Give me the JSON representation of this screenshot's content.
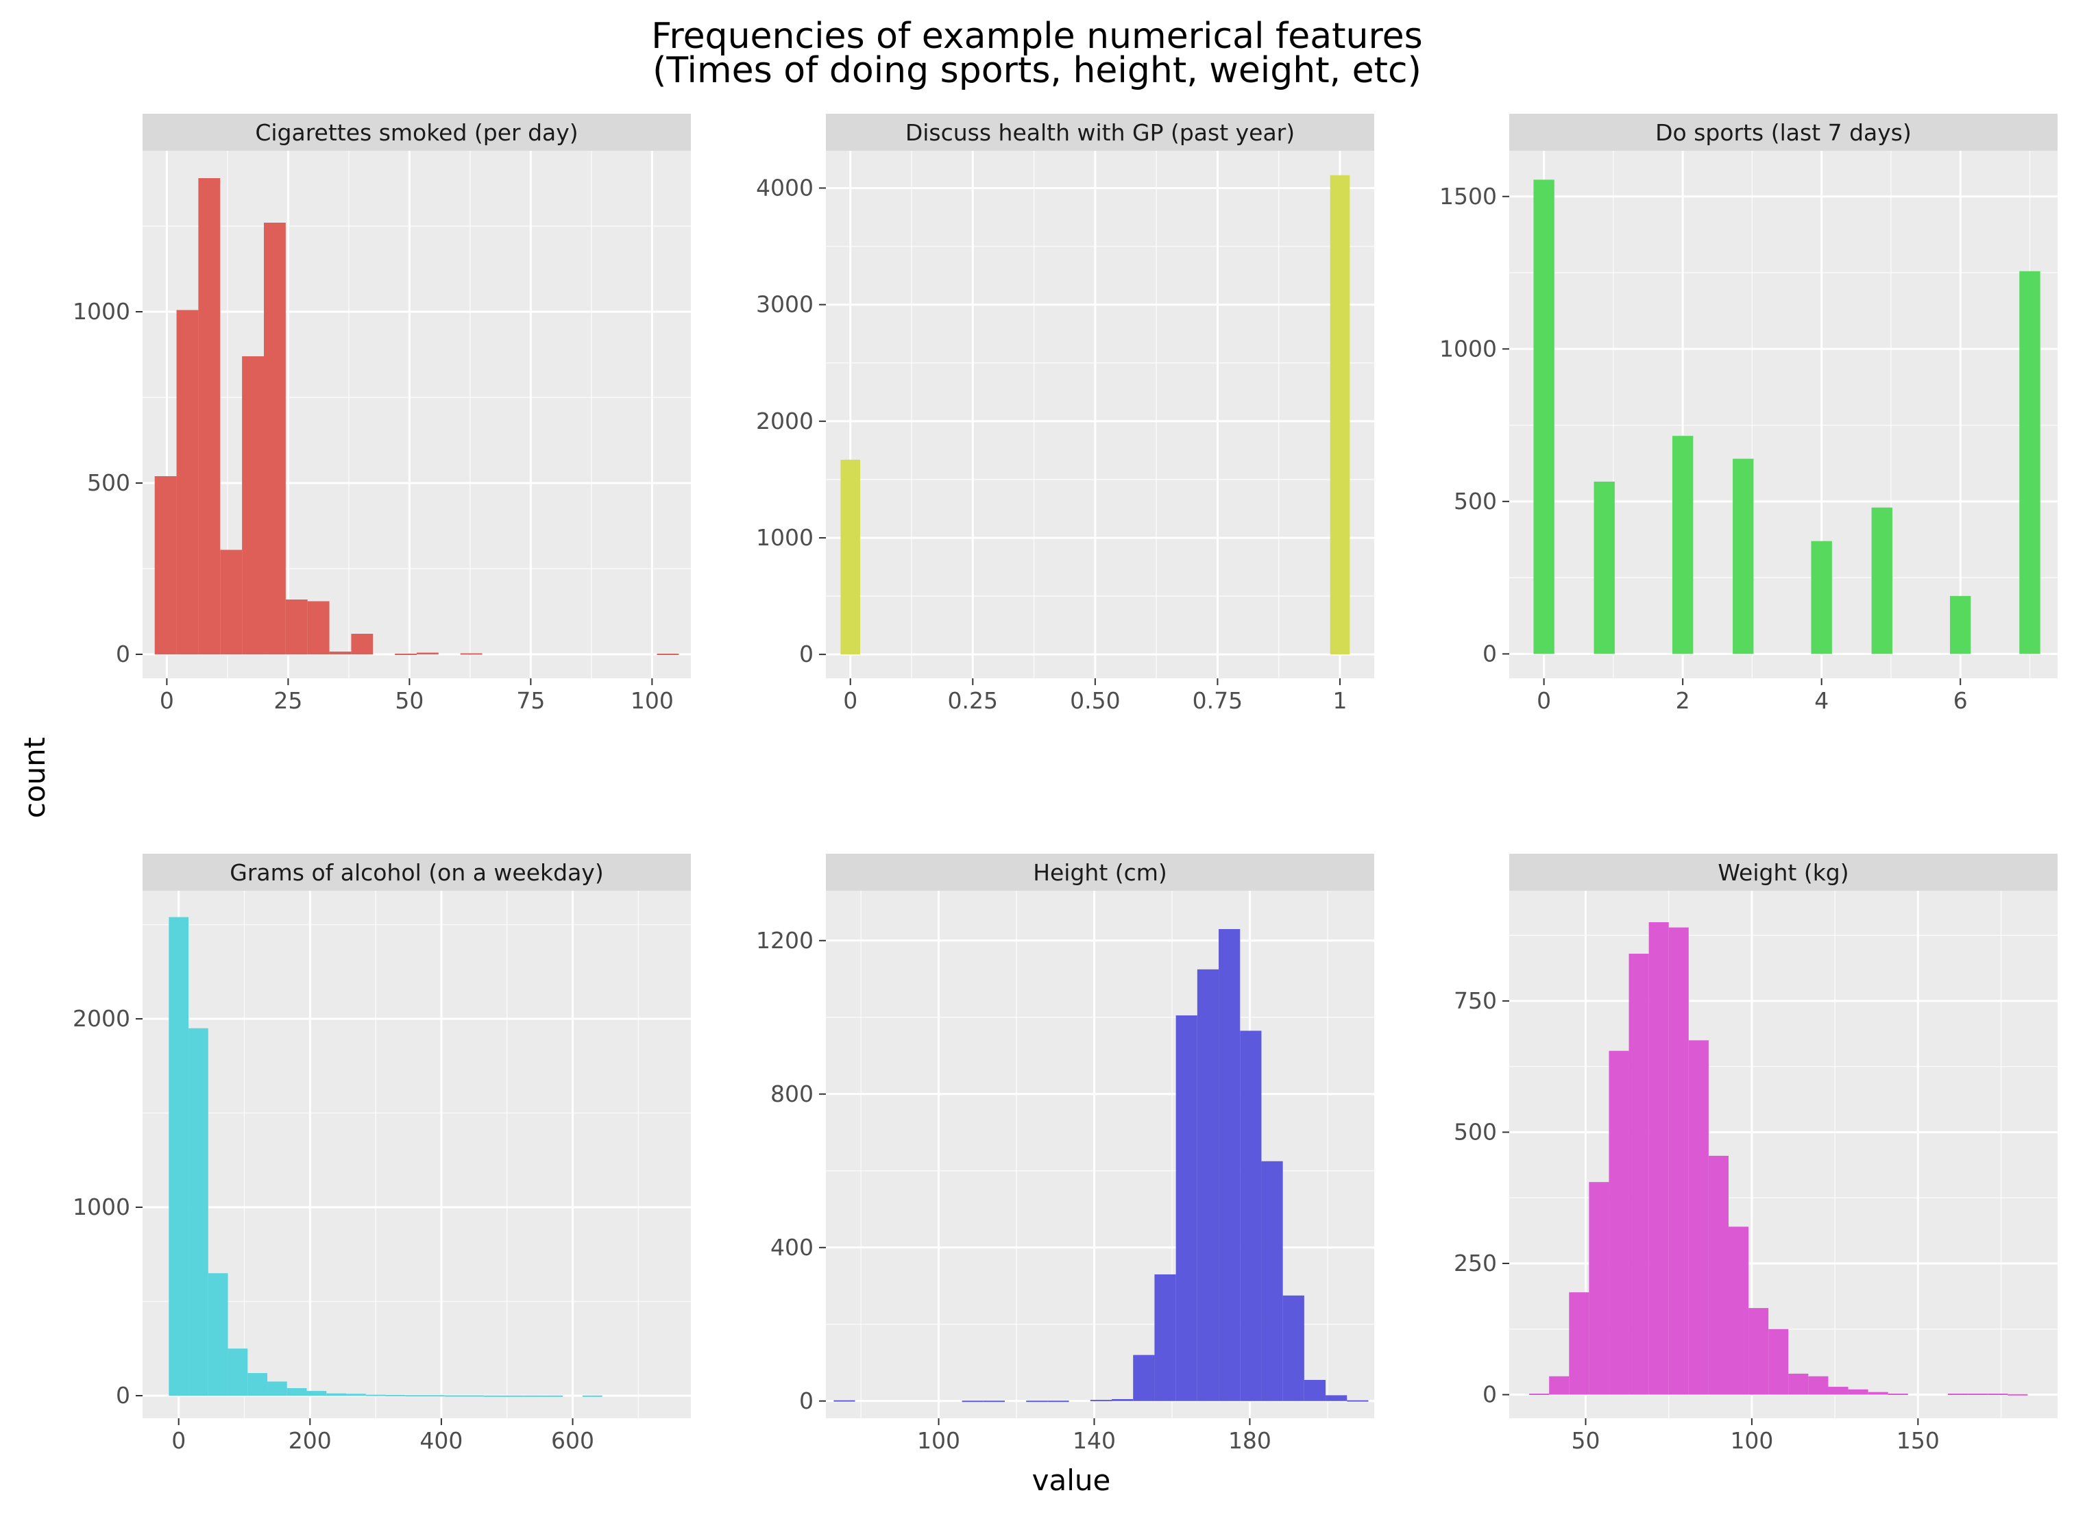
{
  "figure": {
    "title_line1": "Frequencies of example numerical features",
    "title_line2": "(Times of doing sports, height, weight, etc)",
    "xlabel": "value",
    "ylabel": "count"
  },
  "colors": {
    "panel_background": "#ebebeb",
    "strip_background": "#d9d9d9",
    "grid_major": "#ffffff",
    "tick_label": "#4d4d4d"
  },
  "chart_data": [
    {
      "type": "bar",
      "title": "Cigarettes smoked (per day)",
      "color": "#de5f57",
      "xlim": [
        -5,
        108
      ],
      "ylim": [
        -70,
        1470
      ],
      "xticks": [
        0,
        25,
        50,
        75,
        100
      ],
      "xticklabels": [
        "0",
        "25",
        "50",
        "75",
        "100"
      ],
      "yticks": [
        0,
        500,
        1000
      ],
      "yticklabels": [
        "0",
        "500",
        "1000"
      ],
      "bins": {
        "start": -2.5,
        "width": 4.5
      },
      "values": [
        520,
        1005,
        1390,
        305,
        870,
        1260,
        160,
        155,
        8,
        60,
        0,
        2,
        5,
        0,
        3,
        0,
        0,
        0,
        0,
        0,
        0,
        0,
        0,
        2
      ]
    },
    {
      "type": "bar",
      "title": "Discuss health with GP (past year)",
      "color": "#d4dc54",
      "xlim": [
        -0.05,
        1.07
      ],
      "ylim": [
        -205,
        4320
      ],
      "xticks": [
        0,
        0.25,
        0.5,
        0.75,
        1
      ],
      "xticklabels": [
        "0",
        "0.25",
        "0.50",
        "0.75",
        "1"
      ],
      "yticks": [
        0,
        1000,
        2000,
        3000,
        4000
      ],
      "yticklabels": [
        "0",
        "1000",
        "2000",
        "3000",
        "4000"
      ],
      "bins": {
        "start": -0.02,
        "width": 0.04
      },
      "values": [
        1670,
        0,
        0,
        0,
        0,
        0,
        0,
        0,
        0,
        0,
        0,
        0,
        0,
        0,
        0,
        0,
        0,
        0,
        0,
        0,
        0,
        0,
        0,
        0,
        0,
        4110
      ]
    },
    {
      "type": "bar",
      "title": "Do sports (last 7 days)",
      "color": "#57d95e",
      "xlim": [
        -0.5,
        7.4
      ],
      "ylim": [
        -80,
        1650
      ],
      "xticks": [
        0,
        2,
        4,
        6
      ],
      "xticklabels": [
        "0",
        "2",
        "4",
        "6"
      ],
      "yticks": [
        0,
        500,
        1000,
        1500
      ],
      "yticklabels": [
        "0",
        "500",
        "1000",
        "1500"
      ],
      "bins": {
        "start": -0.15,
        "width": 0.3,
        "centers": [
          0,
          0.87,
          2,
          2.87,
          4,
          4.87,
          6,
          7
        ]
      },
      "values": [
        1555,
        565,
        715,
        640,
        370,
        480,
        190,
        1255
      ]
    },
    {
      "type": "bar",
      "title": "Grams of alcohol (on a weekday)",
      "color": "#59d4dc",
      "xlim": [
        -55,
        780
      ],
      "ylim": [
        -120,
        2680
      ],
      "xticks": [
        0,
        200,
        400,
        600
      ],
      "xticklabels": [
        "0",
        "200",
        "400",
        "600"
      ],
      "yticks": [
        0,
        1000,
        2000
      ],
      "yticklabels": [
        "0",
        "1000",
        "2000"
      ],
      "bins": {
        "start": -15,
        "width": 30
      },
      "values": [
        2540,
        1950,
        650,
        250,
        120,
        75,
        40,
        25,
        12,
        10,
        5,
        4,
        3,
        3,
        2,
        2,
        1,
        1,
        1,
        1,
        0,
        1
      ]
    },
    {
      "type": "bar",
      "title": "Height (cm)",
      "color": "#5d59dc",
      "xlim": [
        71,
        212
      ],
      "ylim": [
        -45,
        1330
      ],
      "xticks": [
        100,
        140,
        180
      ],
      "xticklabels": [
        "100",
        "140",
        "180"
      ],
      "yticks": [
        0,
        400,
        800,
        1200
      ],
      "yticklabels": [
        "0",
        "400",
        "800",
        "1200"
      ],
      "bins": {
        "start": 73,
        "width": 5.5
      },
      "values": [
        2,
        0,
        0,
        0,
        0,
        0,
        1,
        1,
        0,
        1,
        1,
        0,
        3,
        5,
        120,
        330,
        1005,
        1125,
        1230,
        965,
        625,
        275,
        55,
        15,
        2
      ]
    },
    {
      "type": "bar",
      "title": "Weight (kg)",
      "color": "#dc59d4",
      "xlim": [
        27,
        192
      ],
      "ylim": [
        -45,
        960
      ],
      "xticks": [
        50,
        100,
        150
      ],
      "xticklabels": [
        "50",
        "100",
        "150"
      ],
      "yticks": [
        0,
        250,
        500,
        750
      ],
      "yticklabels": [
        "0",
        "250",
        "500",
        "750"
      ],
      "bins": {
        "start": 33,
        "width": 6
      },
      "values": [
        2,
        35,
        195,
        405,
        655,
        840,
        900,
        890,
        675,
        455,
        320,
        165,
        125,
        40,
        35,
        15,
        10,
        5,
        2,
        0,
        0,
        2,
        2,
        2,
        1
      ]
    }
  ]
}
